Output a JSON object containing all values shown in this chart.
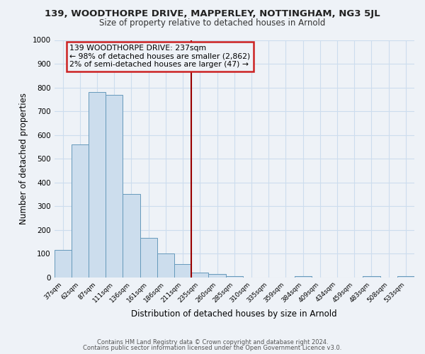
{
  "title": "139, WOODTHORPE DRIVE, MAPPERLEY, NOTTINGHAM, NG3 5JL",
  "subtitle": "Size of property relative to detached houses in Arnold",
  "xlabel": "Distribution of detached houses by size in Arnold",
  "ylabel": "Number of detached properties",
  "footer_line1": "Contains HM Land Registry data © Crown copyright and database right 2024.",
  "footer_line2": "Contains public sector information licensed under the Open Government Licence v3.0.",
  "bin_labels": [
    "37sqm",
    "62sqm",
    "87sqm",
    "111sqm",
    "136sqm",
    "161sqm",
    "186sqm",
    "211sqm",
    "235sqm",
    "260sqm",
    "285sqm",
    "310sqm",
    "335sqm",
    "359sqm",
    "384sqm",
    "409sqm",
    "434sqm",
    "459sqm",
    "483sqm",
    "508sqm",
    "533sqm"
  ],
  "bar_heights": [
    115,
    560,
    780,
    770,
    350,
    165,
    100,
    55,
    20,
    15,
    5,
    0,
    0,
    0,
    5,
    0,
    0,
    0,
    5,
    0,
    5
  ],
  "bar_color": "#ccdded",
  "bar_edge_color": "#6699bb",
  "vline_x_index": 8,
  "vline_color": "#990000",
  "annotation_title": "139 WOODTHORPE DRIVE: 237sqm",
  "annotation_line1": "← 98% of detached houses are smaller (2,862)",
  "annotation_line2": "2% of semi-detached houses are larger (47) →",
  "annotation_box_color": "#cc2222",
  "ylim": [
    0,
    1000
  ],
  "yticks": [
    0,
    100,
    200,
    300,
    400,
    500,
    600,
    700,
    800,
    900,
    1000
  ],
  "grid_color": "#ccddee",
  "background_color": "#eef2f7"
}
